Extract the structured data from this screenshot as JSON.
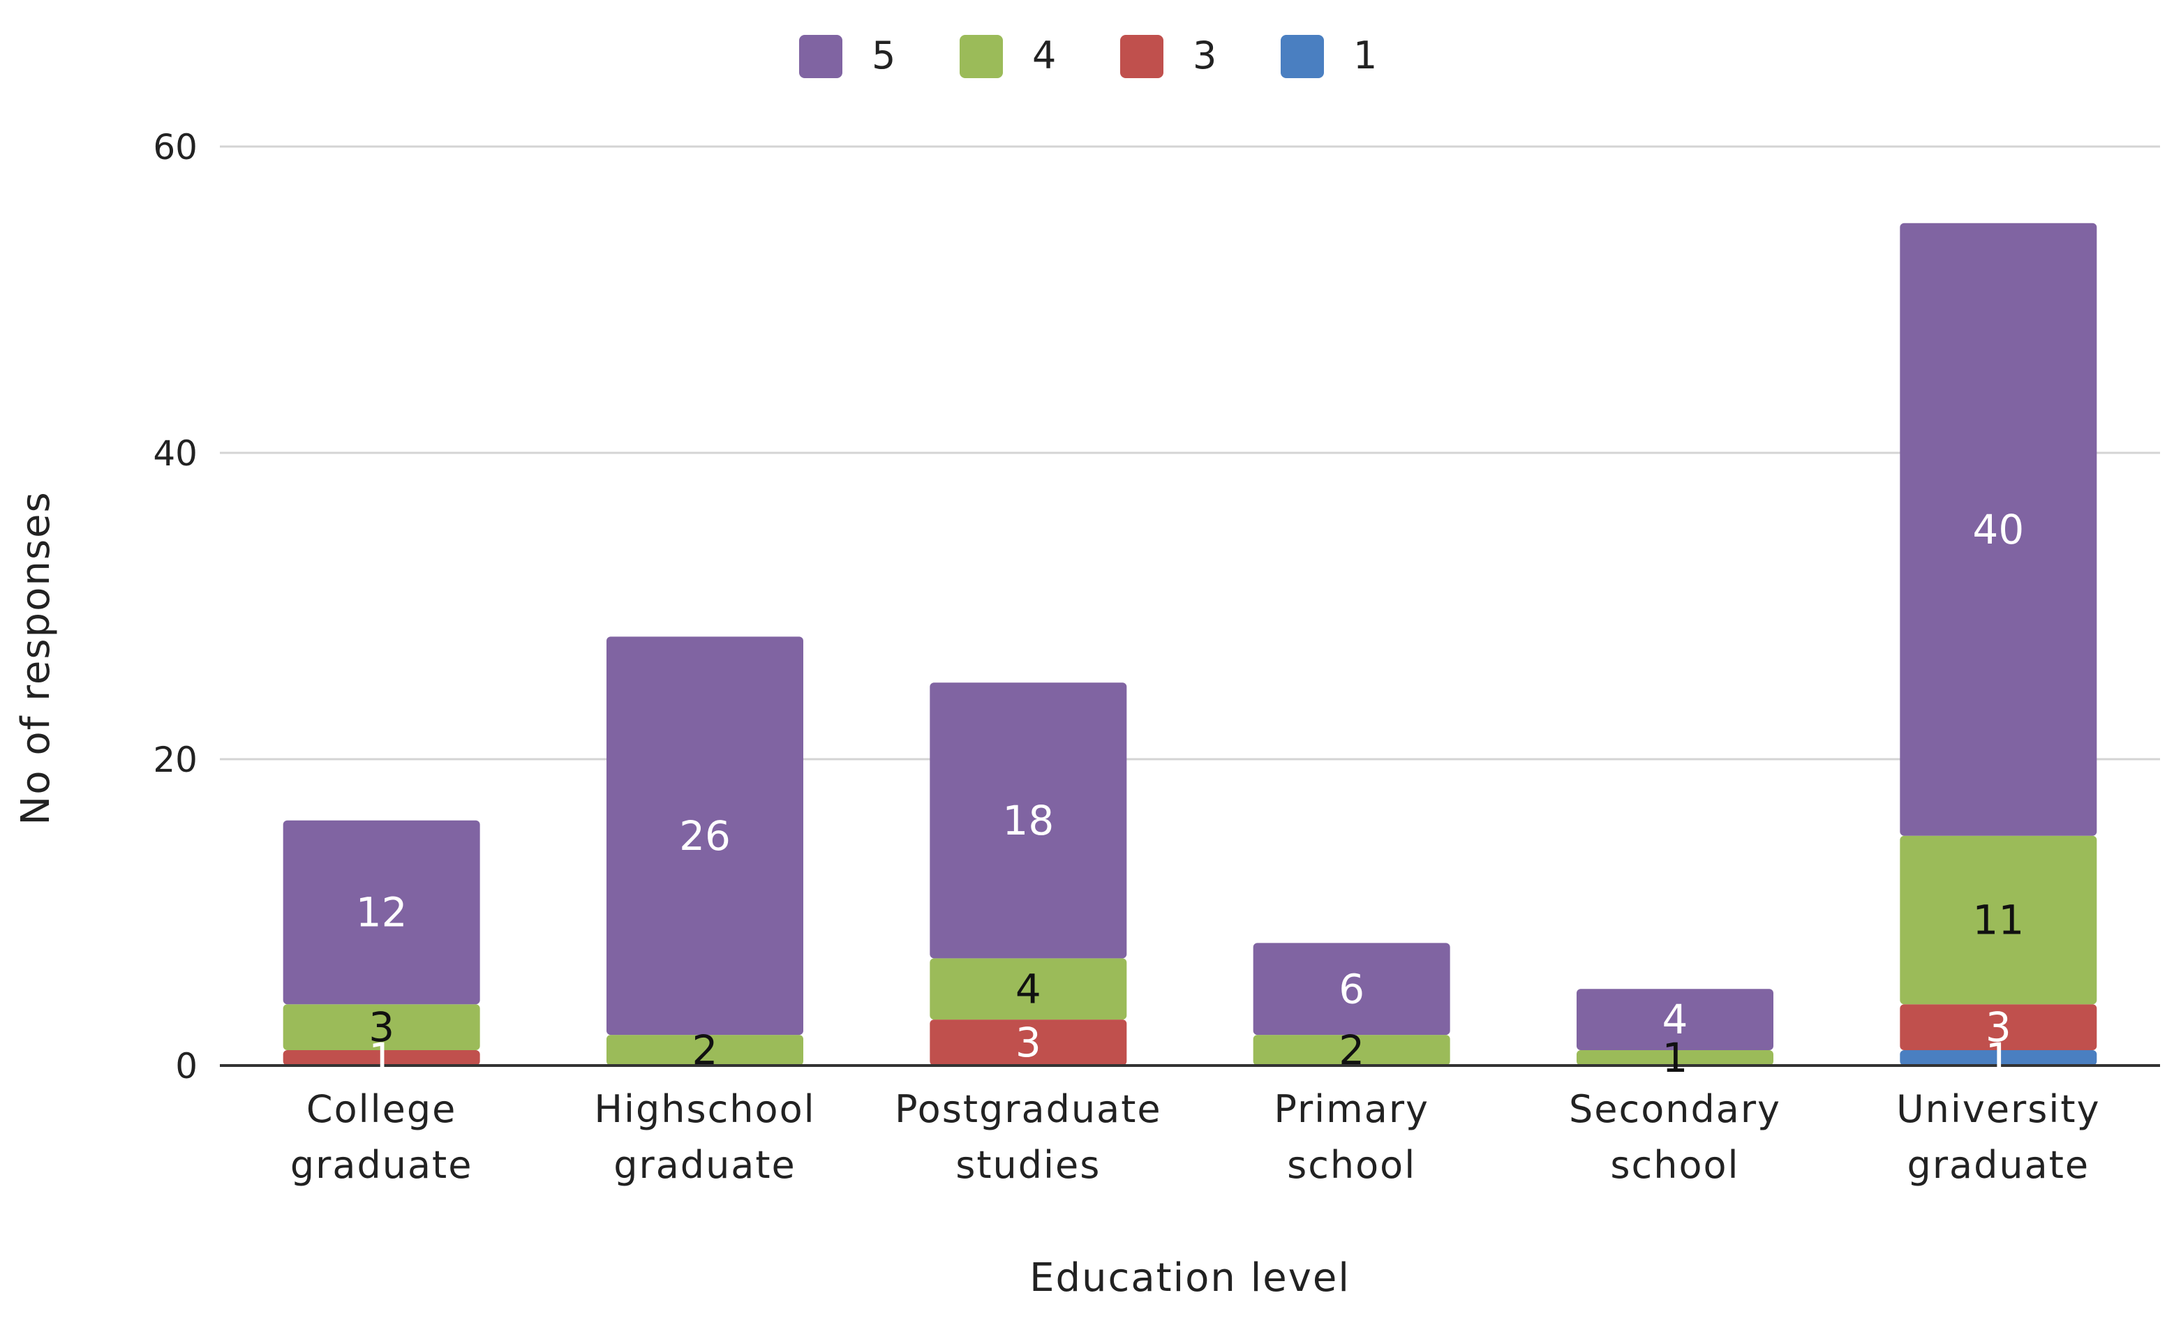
{
  "chart_data": {
    "type": "bar",
    "stacked": true,
    "title": "",
    "xlabel": "Education level",
    "ylabel": "No of responses",
    "ylim": [
      0,
      60
    ],
    "yticks": [
      0,
      20,
      40,
      60
    ],
    "grid": true,
    "legend_position": "top-center",
    "categories": [
      [
        "College",
        "graduate"
      ],
      [
        "Highschool",
        "graduate"
      ],
      [
        "Postgraduate",
        "studies"
      ],
      [
        "Primary",
        "school"
      ],
      [
        "Secondary",
        "school"
      ],
      [
        "University",
        "graduate"
      ]
    ],
    "series": [
      {
        "name": "1",
        "color": "#4a7fc1",
        "label_color": "#ffffff",
        "values": [
          0,
          0,
          0,
          0,
          0,
          1
        ]
      },
      {
        "name": "3",
        "color": "#c0504d",
        "label_color": "#ffffff",
        "values": [
          1,
          0,
          3,
          0,
          0,
          3
        ]
      },
      {
        "name": "4",
        "color": "#9bbb59",
        "label_color": "#111111",
        "values": [
          3,
          2,
          4,
          2,
          1,
          11
        ]
      },
      {
        "name": "5",
        "color": "#8064a2",
        "label_color": "#ffffff",
        "values": [
          12,
          26,
          18,
          6,
          4,
          40
        ]
      }
    ],
    "legend_order": [
      "5",
      "4",
      "3",
      "1"
    ]
  }
}
